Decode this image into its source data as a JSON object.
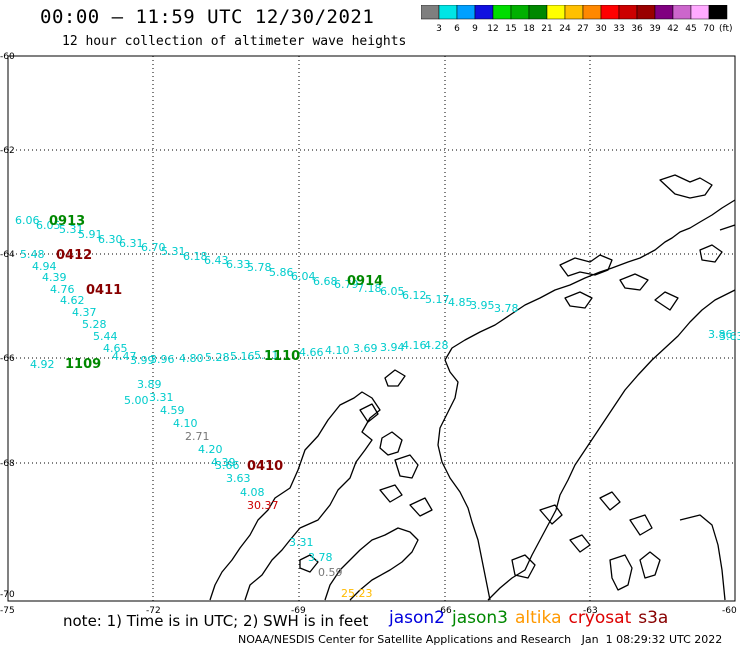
{
  "header": {
    "title": "00:00 – 11:59 UTC 12/30/2021",
    "subtitle": "12 hour collection of altimeter wave heights"
  },
  "colorbar": {
    "colors": [
      "#7f7f7f",
      "#00e5e5",
      "#00a0ff",
      "#1010e0",
      "#00dd00",
      "#00b000",
      "#008800",
      "#ffff00",
      "#ffc000",
      "#ff8800",
      "#ff0000",
      "#cc0000",
      "#990000",
      "#800080",
      "#cc66cc",
      "#ffaaff",
      "#000000"
    ],
    "labels": [
      "3",
      "6",
      "9",
      "12",
      "15",
      "18",
      "21",
      "24",
      "27",
      "30",
      "33",
      "36",
      "39",
      "42",
      "45",
      "70"
    ],
    "unit": "(ft)"
  },
  "axes": {
    "lat_labels": [
      "-60",
      "-62",
      "-64",
      "-66",
      "-68",
      "-70"
    ],
    "lon_labels": [
      "-75",
      "-72",
      "-69",
      "-66",
      "-63",
      "-60"
    ]
  },
  "measurements": [
    {
      "v": "6.06",
      "c": "#00cccc"
    },
    {
      "v": "6.05",
      "c": "#00cccc"
    },
    {
      "v": "5.31",
      "c": "#00cccc"
    },
    {
      "v": "5.91",
      "c": "#00cccc"
    },
    {
      "v": "6.30",
      "c": "#00cccc"
    },
    {
      "v": "6.31",
      "c": "#00cccc"
    },
    {
      "v": "6.70",
      "c": "#00cccc"
    },
    {
      "v": "5.31",
      "c": "#00cccc"
    },
    {
      "v": "6.18",
      "c": "#00cccc"
    },
    {
      "v": "6.43",
      "c": "#00cccc"
    },
    {
      "v": "6.33",
      "c": "#00cccc"
    },
    {
      "v": "5.78",
      "c": "#00cccc"
    },
    {
      "v": "5.86",
      "c": "#00cccc"
    },
    {
      "v": "6.04",
      "c": "#00cccc"
    },
    {
      "v": "6.68",
      "c": "#00cccc"
    },
    {
      "v": "6.79",
      "c": "#00cccc"
    },
    {
      "v": "7.18",
      "c": "#00cccc"
    },
    {
      "v": "6.05",
      "c": "#00cccc"
    },
    {
      "v": "6.12",
      "c": "#00cccc"
    },
    {
      "v": "5.17",
      "c": "#00cccc"
    },
    {
      "v": "4.85",
      "c": "#00cccc"
    },
    {
      "v": "3.95",
      "c": "#00cccc"
    },
    {
      "v": "3.78",
      "c": "#00cccc"
    },
    {
      "v": "5.48",
      "c": "#00cccc"
    },
    {
      "v": "4.94",
      "c": "#00cccc"
    },
    {
      "v": "4.39",
      "c": "#00cccc"
    },
    {
      "v": "4.76",
      "c": "#00cccc"
    },
    {
      "v": "4.62",
      "c": "#00cccc"
    },
    {
      "v": "4.37",
      "c": "#00cccc"
    },
    {
      "v": "5.28",
      "c": "#00cccc"
    },
    {
      "v": "5.44",
      "c": "#00cccc"
    },
    {
      "v": "4.65",
      "c": "#00cccc"
    },
    {
      "v": "4.47",
      "c": "#00cccc"
    },
    {
      "v": "5.00",
      "c": "#00cccc"
    },
    {
      "v": "3.89",
      "c": "#00cccc"
    },
    {
      "v": "3.31",
      "c": "#00cccc"
    },
    {
      "v": "4.59",
      "c": "#00cccc"
    },
    {
      "v": "4.10",
      "c": "#00cccc"
    },
    {
      "v": "2.71",
      "c": "#777777"
    },
    {
      "v": "4.20",
      "c": "#00cccc"
    },
    {
      "v": "4.39",
      "c": "#00cccc"
    },
    {
      "v": "3.66",
      "c": "#00cccc"
    },
    {
      "v": "3.63",
      "c": "#00cccc"
    },
    {
      "v": "4.08",
      "c": "#00cccc"
    },
    {
      "v": "30.37",
      "c": "#cc0000"
    },
    {
      "v": "4.92",
      "c": "#00cccc"
    },
    {
      "v": "3.99",
      "c": "#00cccc"
    },
    {
      "v": "3.96",
      "c": "#00cccc"
    },
    {
      "v": "4.80",
      "c": "#00cccc"
    },
    {
      "v": "5.28",
      "c": "#00cccc"
    },
    {
      "v": "5.16",
      "c": "#00cccc"
    },
    {
      "v": "5.11",
      "c": "#00cccc"
    },
    {
      "v": "4.66",
      "c": "#00cccc"
    },
    {
      "v": "4.10",
      "c": "#00cccc"
    },
    {
      "v": "3.69",
      "c": "#00cccc"
    },
    {
      "v": "3.94",
      "c": "#00cccc"
    },
    {
      "v": "4.16",
      "c": "#00cccc"
    },
    {
      "v": "4.28",
      "c": "#00cccc"
    },
    {
      "v": "3.31",
      "c": "#00cccc"
    },
    {
      "v": "3.78",
      "c": "#00cccc"
    },
    {
      "v": "0.59",
      "c": "#777777"
    },
    {
      "v": "25.23",
      "c": "#ffbb00"
    },
    {
      "v": "3.86",
      "c": "#00cccc"
    },
    {
      "v": "3.63",
      "c": "#00cccc"
    }
  ],
  "time_labels": [
    {
      "v": "0913",
      "c": "#008800"
    },
    {
      "v": "0412",
      "c": "#880000"
    },
    {
      "v": "0411",
      "c": "#880000"
    },
    {
      "v": "1109",
      "c": "#008800"
    },
    {
      "v": "1110",
      "c": "#008800"
    },
    {
      "v": "0914",
      "c": "#008800"
    },
    {
      "v": "0410",
      "c": "#880000"
    }
  ],
  "footer": {
    "note": "note: 1) Time is in UTC; 2) SWH is in feet",
    "credit": "NOAA/NESDIS Center for Satellite Applications and Research   Jan  1 08:29:32 UTC 2022"
  },
  "legend": [
    {
      "label": "jason2",
      "color": "#0000dd"
    },
    {
      "label": "jason3",
      "color": "#008800"
    },
    {
      "label": "altika",
      "color": "#ff9900"
    },
    {
      "label": "cryosat",
      "color": "#dd0000"
    },
    {
      "label": "s3a",
      "color": "#880000"
    }
  ]
}
